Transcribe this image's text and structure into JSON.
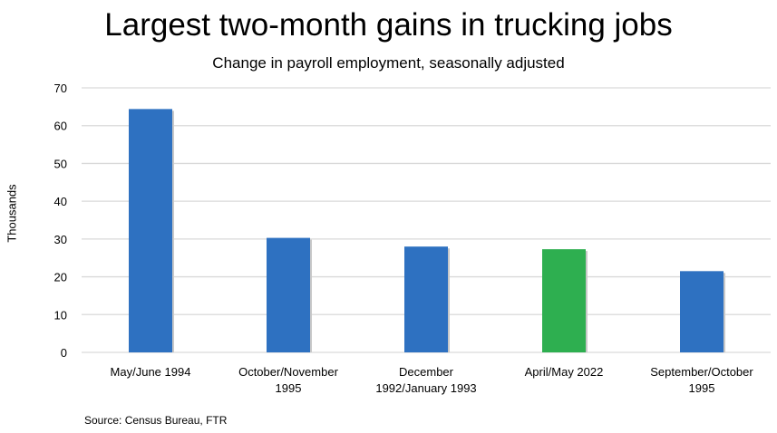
{
  "chart_data": {
    "type": "bar",
    "title": "Largest two-month gains in trucking jobs",
    "subtitle": "Change in payroll employment, seasonally adjusted",
    "xlabel": "",
    "ylabel": "Thousands",
    "ylim": [
      0,
      70
    ],
    "yticks": [
      0,
      10,
      20,
      30,
      40,
      50,
      60,
      70
    ],
    "grid": true,
    "categories": [
      [
        "May/June 1994"
      ],
      [
        "October/November",
        "1995"
      ],
      [
        "December",
        "1992/January 1993"
      ],
      [
        "April/May 2022"
      ],
      [
        "September/October",
        "1995"
      ]
    ],
    "values": [
      64.4,
      30.3,
      28.0,
      27.3,
      21.5
    ],
    "colors": [
      "#2E71C1",
      "#2E71C1",
      "#2E71C1",
      "#2EAF50",
      "#2E71C1"
    ],
    "source": "Source: Census Bureau, FTR"
  }
}
